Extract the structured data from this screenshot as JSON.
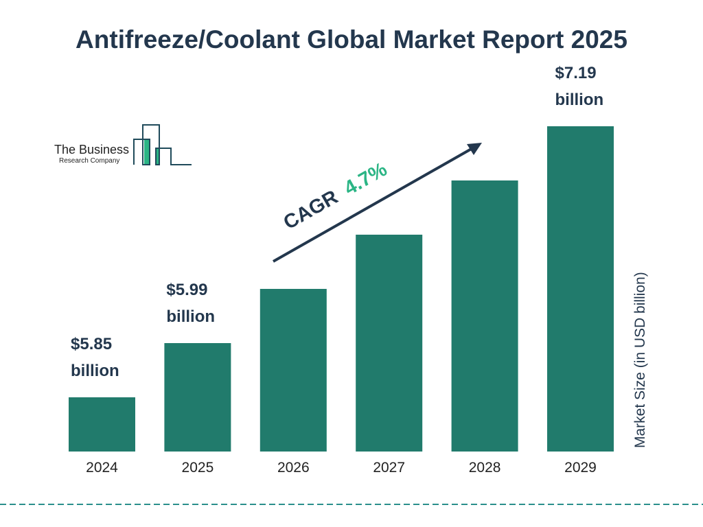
{
  "chart_data": {
    "type": "bar",
    "title": "Antifreeze/Coolant Global Market Report 2025",
    "categories": [
      "2024",
      "2025",
      "2026",
      "2027",
      "2028",
      "2029"
    ],
    "values": [
      5.85,
      5.99,
      null,
      null,
      null,
      7.19
    ],
    "data_labels": [
      "$5.85 billion",
      "$5.99 billion",
      "",
      "",
      "",
      "$7.19 billion"
    ],
    "ylabel": "Market Size (in USD billion)",
    "xlabel": "",
    "annotation": {
      "text": "CAGR",
      "value": "4.7%"
    },
    "grid": false,
    "colors": {
      "bar": "#217b6c",
      "text": "#23374d",
      "cagr": "#2bb585",
      "divider": "#2a8f8b"
    }
  },
  "logo": {
    "line1": "The Business",
    "line2": "Research Company"
  }
}
